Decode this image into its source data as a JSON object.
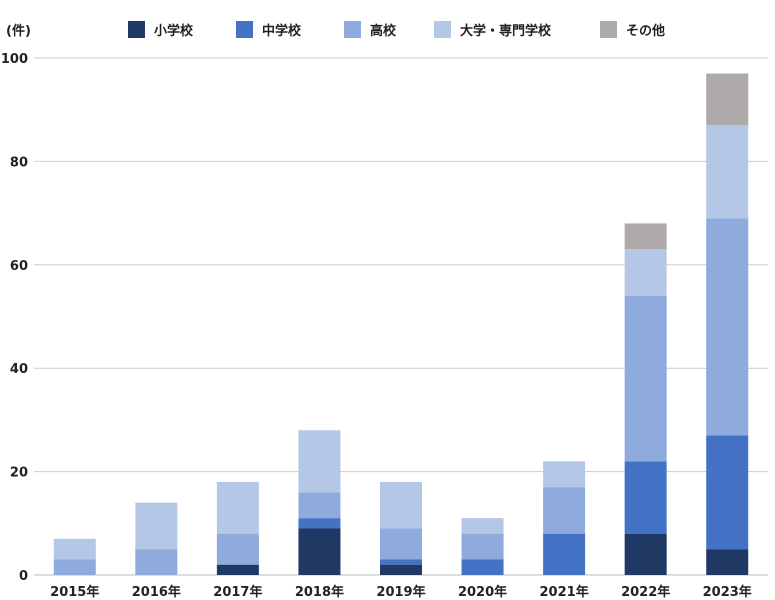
{
  "chart_data": {
    "type": "bar",
    "stacked": true,
    "unit_label": "(件)",
    "categories": [
      "2015年",
      "2016年",
      "2017年",
      "2018年",
      "2019年",
      "2020年",
      "2021年",
      "2022年",
      "2023年"
    ],
    "series": [
      {
        "name": "小学校",
        "color": "#1f3864",
        "values": [
          0,
          0,
          2,
          9,
          2,
          0,
          0,
          8,
          5
        ]
      },
      {
        "name": "中学校",
        "color": "#4472c4",
        "values": [
          0,
          0,
          0,
          2,
          1,
          3,
          8,
          14,
          22
        ]
      },
      {
        "name": "高校",
        "color": "#8faadc",
        "values": [
          3,
          5,
          6,
          5,
          6,
          5,
          9,
          32,
          42
        ]
      },
      {
        "name": "大学・専門学校",
        "color": "#b4c7e7",
        "values": [
          4,
          9,
          10,
          12,
          9,
          3,
          5,
          9,
          18
        ]
      },
      {
        "name": "その他",
        "color": "#aeaaaa",
        "values": [
          0,
          0,
          0,
          0,
          0,
          0,
          0,
          5,
          10
        ]
      }
    ],
    "ylim": [
      0,
      100
    ],
    "yticks": [
      0,
      20,
      40,
      60,
      80,
      100
    ],
    "grid": true,
    "legend_position": "top"
  }
}
